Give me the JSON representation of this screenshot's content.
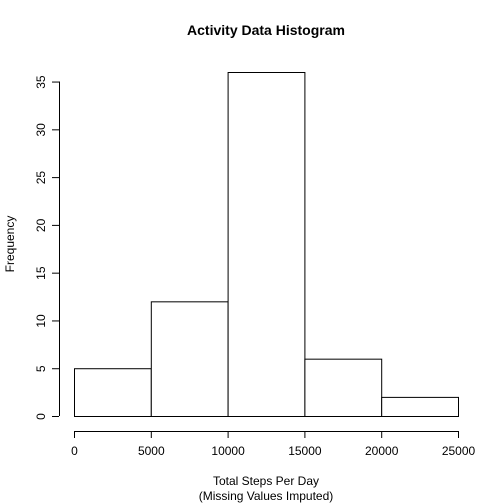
{
  "chart_data": {
    "type": "bar",
    "subtype": "histogram",
    "title": "Activity Data Histogram",
    "xlabel": "Total Steps Per Day",
    "xlabel_line2": "(Missing Values Imputed)",
    "ylabel": "Frequency",
    "bins": [
      {
        "from": 0,
        "to": 5000,
        "value": 5
      },
      {
        "from": 5000,
        "to": 10000,
        "value": 12
      },
      {
        "from": 10000,
        "to": 15000,
        "value": 36
      },
      {
        "from": 15000,
        "to": 20000,
        "value": 6
      },
      {
        "from": 20000,
        "to": 25000,
        "value": 2
      }
    ],
    "x_ticks": [
      0,
      5000,
      10000,
      15000,
      20000,
      25000
    ],
    "y_ticks": [
      0,
      5,
      10,
      15,
      20,
      25,
      30,
      35
    ],
    "xlim": [
      0,
      25000
    ],
    "ylim": [
      0,
      36
    ],
    "grid": false,
    "legend": "none",
    "colors": {
      "bar_fill": "#ffffff",
      "bar_stroke": "#000000"
    }
  }
}
